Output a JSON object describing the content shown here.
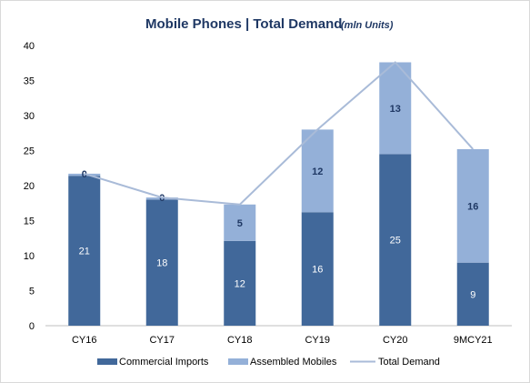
{
  "chart_data": {
    "type": "bar",
    "stacked": true,
    "title": "Mobile Phones | Total Demand",
    "subtitle": "(mln Units)",
    "categories": [
      "CY16",
      "CY17",
      "CY18",
      "CY19",
      "CY20",
      "9MCY21"
    ],
    "series": [
      {
        "name": "Commercial Imports",
        "type": "bar",
        "values": [
          21.4,
          18.0,
          12.1,
          16.2,
          24.5,
          9.0
        ],
        "labels": [
          "21",
          "18",
          "12",
          "16",
          "25",
          "9"
        ],
        "color": "#41689a"
      },
      {
        "name": "Assembled Mobiles",
        "type": "bar",
        "values": [
          0.3,
          0.3,
          5.2,
          11.8,
          13.1,
          16.2
        ],
        "labels": [
          "0",
          "0",
          "5",
          "12",
          "13",
          "16"
        ],
        "color": "#94b0d8"
      },
      {
        "name": "Total Demand",
        "type": "line",
        "values": [
          21.7,
          18.3,
          17.3,
          28.0,
          37.6,
          25.2
        ],
        "color": "#a9bbd8"
      }
    ],
    "ylim": [
      0,
      40
    ],
    "yticks": [
      0,
      5,
      10,
      15,
      20,
      25,
      30,
      35,
      40
    ],
    "grid": false,
    "legend_position": "bottom"
  }
}
